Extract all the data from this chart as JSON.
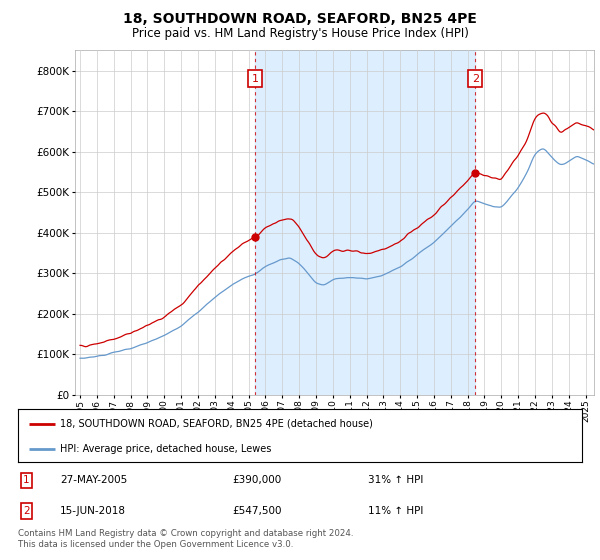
{
  "title": "18, SOUTHDOWN ROAD, SEAFORD, BN25 4PE",
  "subtitle": "Price paid vs. HM Land Registry's House Price Index (HPI)",
  "legend_line1": "18, SOUTHDOWN ROAD, SEAFORD, BN25 4PE (detached house)",
  "legend_line2": "HPI: Average price, detached house, Lewes",
  "sale1_date": "27-MAY-2005",
  "sale1_price": "£390,000",
  "sale1_hpi": "31% ↑ HPI",
  "sale1_year": 2005.4,
  "sale1_value": 390000,
  "sale2_date": "15-JUN-2018",
  "sale2_price": "£547,500",
  "sale2_hpi": "11% ↑ HPI",
  "sale2_year": 2018.45,
  "sale2_value": 547500,
  "footer": "Contains HM Land Registry data © Crown copyright and database right 2024.\nThis data is licensed under the Open Government Licence v3.0.",
  "red_color": "#cc0000",
  "blue_color": "#6699cc",
  "fill_color": "#ddeeff",
  "background_color": "#ffffff",
  "grid_color": "#cccccc",
  "ylim_max": 850000,
  "xlim_start": 1994.7,
  "xlim_end": 2025.5
}
